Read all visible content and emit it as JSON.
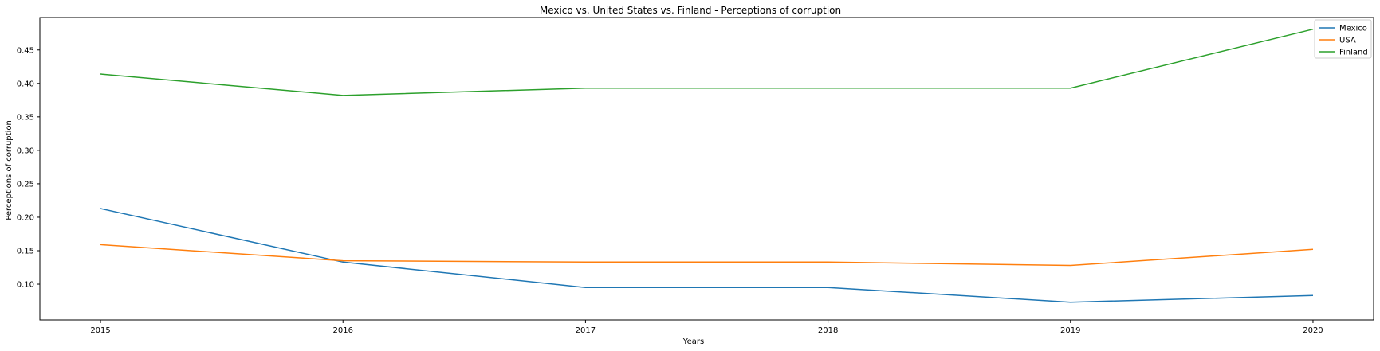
{
  "chart_data": {
    "type": "line",
    "title": "Mexico vs. United States vs. Finland - Perceptions of corruption",
    "xlabel": "Years",
    "ylabel": "Perceptions of corruption",
    "x": [
      2015,
      2016,
      2017,
      2018,
      2019,
      2020
    ],
    "xticks": [
      "2015",
      "2016",
      "2017",
      "2018",
      "2019",
      "2020"
    ],
    "yticks": [
      0.1,
      0.15,
      0.2,
      0.25,
      0.3,
      0.35,
      0.4,
      0.45
    ],
    "xlim": [
      2014.75,
      2020.25
    ],
    "ylim": [
      0.0465,
      0.4985
    ],
    "grid": false,
    "legend": "top-right",
    "series": [
      {
        "name": "Mexico",
        "color": "#1f77b4",
        "values": [
          0.213,
          0.133,
          0.095,
          0.095,
          0.073,
          0.083
        ]
      },
      {
        "name": "USA",
        "color": "#ff7f0e",
        "values": [
          0.159,
          0.135,
          0.133,
          0.133,
          0.128,
          0.152
        ]
      },
      {
        "name": "Finland",
        "color": "#2ca02c",
        "values": [
          0.414,
          0.382,
          0.393,
          0.393,
          0.393,
          0.481
        ]
      }
    ]
  }
}
